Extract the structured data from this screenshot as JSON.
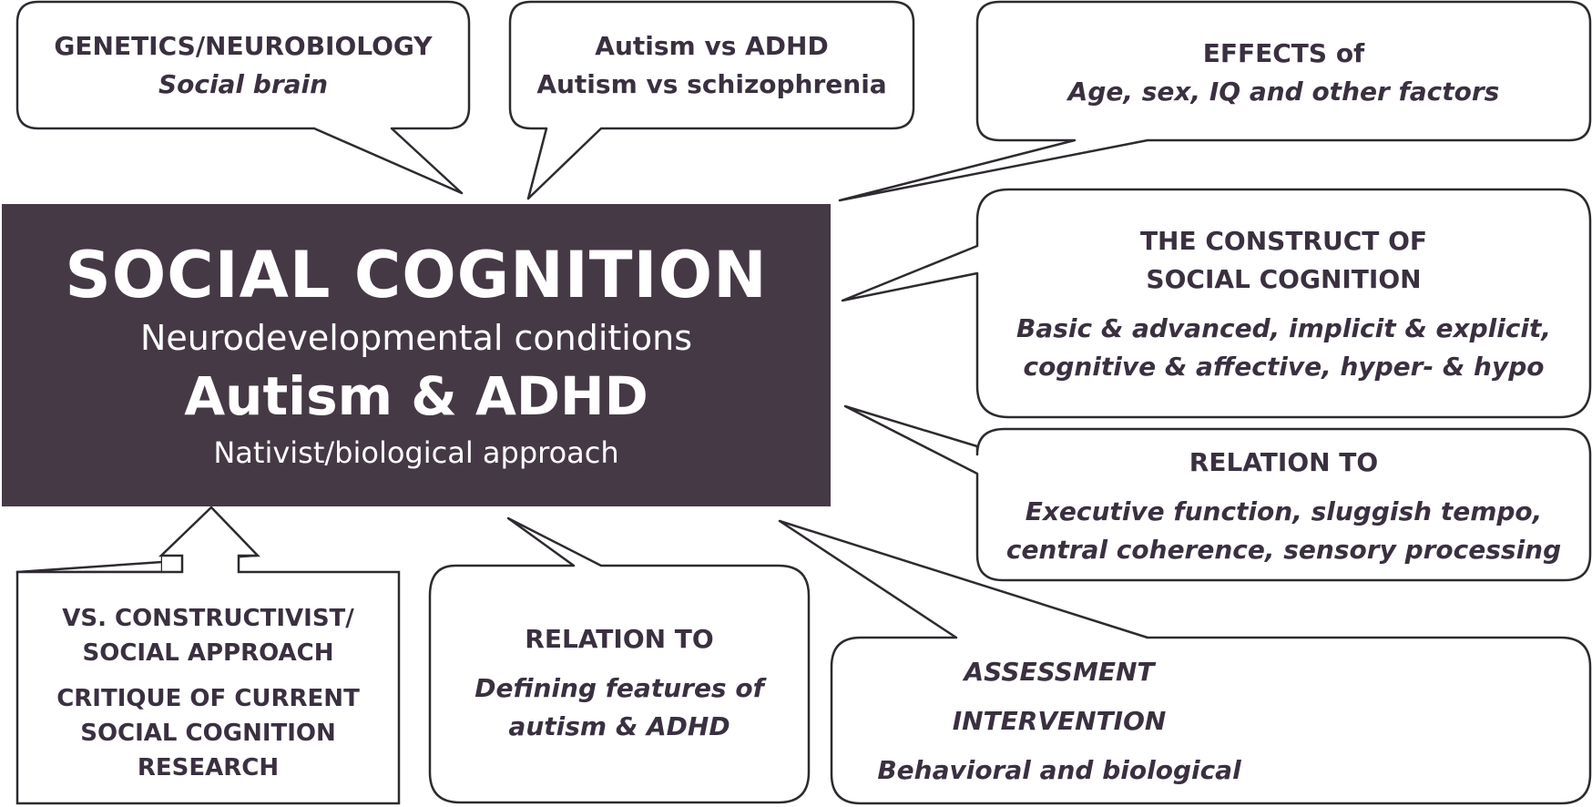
{
  "center": {
    "title": "SOCIAL COGNITION",
    "subtitle": "Neurodevelopmental conditions",
    "main": "Autism & ADHD",
    "approach": "Nativist/biological approach"
  },
  "bubbles": {
    "genetics": {
      "heading": "GENETICS/NEUROBIOLOGY",
      "detail": "Social brain"
    },
    "comparisons": {
      "line1": "Autism vs ADHD",
      "line2": "Autism vs schizophrenia"
    },
    "effects": {
      "heading": "EFFECTS of",
      "detail": "Age, sex, IQ and other factors"
    },
    "construct": {
      "heading1": "THE CONSTRUCT OF",
      "heading2": "SOCIAL COGNITION",
      "detail1": "Basic & advanced, implicit & explicit,",
      "detail2": "cognitive & affective, hyper- & hypo"
    },
    "relation_functions": {
      "heading": "RELATION TO",
      "detail1": "Executive function, sluggish tempo,",
      "detail2": "central coherence, sensory processing"
    },
    "relation_features": {
      "heading": "RELATION TO",
      "detail1": "Defining features of",
      "detail2": "autism & ADHD"
    },
    "assessment": {
      "line1": "ASSESSMENT",
      "line2": "INTERVENTION",
      "line3": "Behavioral and biological"
    }
  },
  "arrow_box": {
    "line1": "VS. CONSTRUCTIVIST/",
    "line2": "SOCIAL APPROACH",
    "line3": "CRITIQUE OF CURRENT",
    "line4": "SOCIAL COGNITION",
    "line5": "RESEARCH"
  },
  "colors": {
    "center_fill": "#463946",
    "stroke": "#2e2a30",
    "text": "#3a3040"
  }
}
